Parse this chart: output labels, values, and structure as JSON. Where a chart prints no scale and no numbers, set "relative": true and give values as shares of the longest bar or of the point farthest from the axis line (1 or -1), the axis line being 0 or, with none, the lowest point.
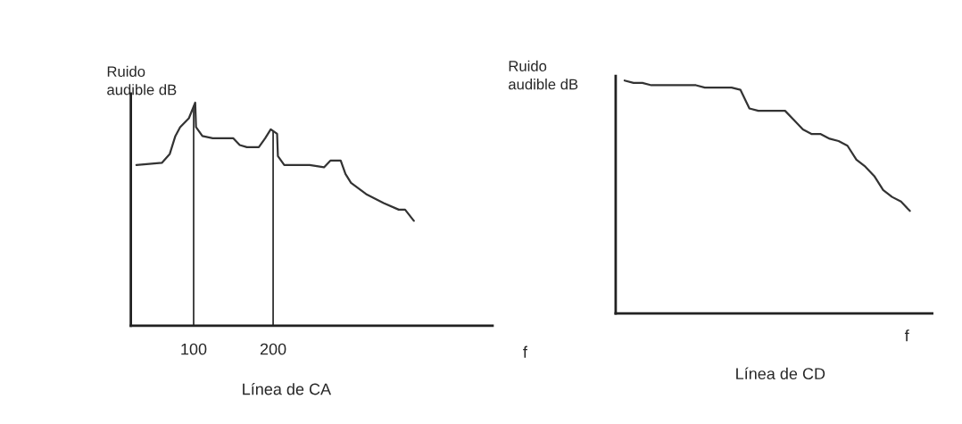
{
  "chart_data": [
    {
      "type": "line",
      "title": "Línea de CA",
      "xlabel": "f",
      "ylabel": "Ruido\naudible dB",
      "relative": true,
      "xlim": [
        21,
        476
      ],
      "xticks": [
        100,
        200
      ],
      "legend": false,
      "grid": false,
      "marker": "none",
      "line_style": "solid",
      "x": [
        28,
        60,
        70,
        77,
        83,
        94,
        102,
        103,
        111,
        124,
        150,
        158,
        167,
        182,
        190,
        197,
        205,
        206,
        214,
        246,
        264,
        272,
        285,
        291,
        298,
        317,
        339,
        358,
        366,
        377
      ],
      "series": [
        {
          "color": "#333333",
          "values": [
            0.72,
            0.73,
            0.77,
            0.85,
            0.89,
            0.93,
            1,
            0.89,
            0.85,
            0.84,
            0.84,
            0.81,
            0.8,
            0.8,
            0.84,
            0.88,
            0.86,
            0.76,
            0.72,
            0.72,
            0.71,
            0.74,
            0.74,
            0.68,
            0.64,
            0.59,
            0.55,
            0.52,
            0.52,
            0.47
          ]
        }
      ],
      "ref_lines": [
        {
          "axis": "x",
          "value": 100,
          "color": "#333333"
        },
        {
          "axis": "x",
          "value": 200,
          "color": "#333333"
        }
      ]
    },
    {
      "type": "line",
      "title": "Línea de CD",
      "xlabel": "f",
      "ylabel": "Ruido\naudible dB",
      "relative": true,
      "legend": false,
      "grid": false,
      "marker": "none",
      "line_style": "solid",
      "categories": [
        null,
        null,
        null,
        null,
        null,
        null,
        null,
        null,
        null,
        null,
        null,
        null,
        null,
        null,
        null,
        null,
        null,
        null,
        null,
        null,
        null,
        null,
        null,
        null,
        null,
        null,
        null,
        null,
        null,
        null,
        null,
        null,
        null
      ],
      "series": [
        {
          "color": "#333333",
          "values": [
            1.0,
            0.99,
            0.99,
            0.98,
            0.98,
            0.98,
            0.98,
            0.98,
            0.98,
            0.97,
            0.97,
            0.97,
            0.97,
            0.96,
            0.88,
            0.87,
            0.87,
            0.87,
            0.87,
            0.83,
            0.79,
            0.77,
            0.77,
            0.75,
            0.74,
            0.72,
            0.66,
            0.63,
            0.59,
            0.53,
            0.5,
            0.48,
            0.44
          ]
        }
      ]
    }
  ]
}
